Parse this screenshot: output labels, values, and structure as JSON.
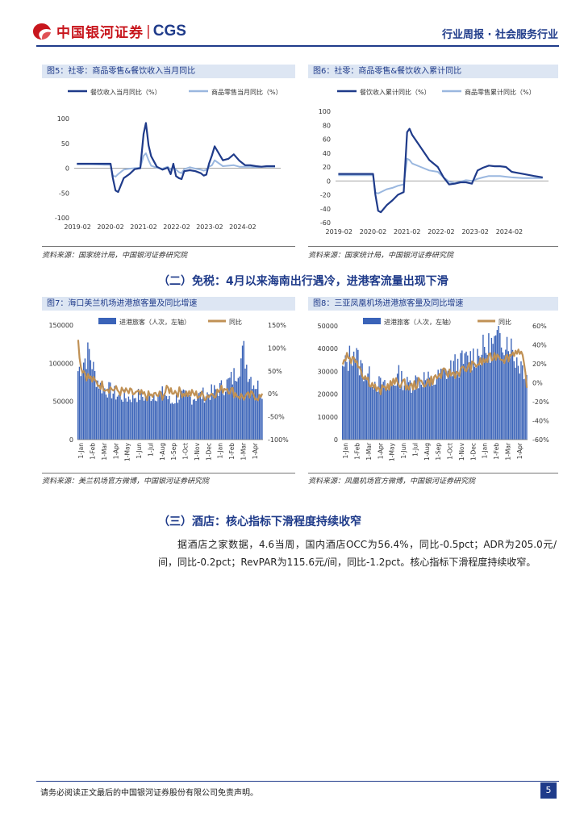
{
  "header": {
    "brand_name": "中国银河证券",
    "brand_sep": "|",
    "brand_abbr": "CGS",
    "right_text": "行业周报 · 社会服务行业"
  },
  "colors": {
    "navy": "#1f3b8a",
    "light_blue": "#9ab7df",
    "bar_blue": "#3a63b8",
    "tan": "#c09155",
    "red": "#c8161d"
  },
  "figures": {
    "fig5": {
      "title": "图5：社零：商品零售&餐饮收入当月同比",
      "source": "资料来源：国家统计局，中国银河证券研究院"
    },
    "fig6": {
      "title": "图6：社零：商品零售&餐饮收入累计同比",
      "source": "资料来源：国家统计局，中国银河证券研究院"
    },
    "fig7": {
      "title": "图7：海口美兰机场进港旅客量及同比增速",
      "source": "资料来源：美兰机场官方微博，中国银河证券研究院"
    },
    "fig8": {
      "title": "图8：三亚凤凰机场进港旅客量及同比增速",
      "source": "资料来源：凤凰机场官方微博，中国银河证券研究院"
    }
  },
  "sections": {
    "s2_title": "（二）免税：4月以来海南出行遇冷，进港客流量出现下滑",
    "s3_title": "（三）酒店：核心指标下滑程度持续收窄",
    "s3_para": "据酒店之家数据，4.6当周，国内酒店OCC为56.4%，同比-0.5pct；ADR为205.0元/间，同比-0.2pct；RevPAR为115.6元/间，同比-1.2pct。核心指标下滑程度持续收窄。"
  },
  "footer": {
    "disclaimer": "请务必阅读正文最后的中国银河证券股份有限公司免责声明。",
    "page": "5"
  },
  "chart_data": [
    {
      "id": "fig5",
      "type": "line",
      "legend": [
        "餐饮收入当月同比（%）",
        "商品零售当月同比（%）"
      ],
      "ylim": [
        -100,
        100
      ],
      "yticks": [
        "100",
        "50",
        "0",
        "-50",
        "-100"
      ],
      "xticks": [
        "2019-02",
        "2020-02",
        "2021-02",
        "2022-02",
        "2023-02",
        "2024-02"
      ],
      "x": [
        2019.08,
        2019.5,
        2019.92,
        2020.1,
        2020.17,
        2020.25,
        2020.33,
        2020.5,
        2020.67,
        2020.83,
        2021.0,
        2021.1,
        2021.17,
        2021.25,
        2021.33,
        2021.5,
        2021.67,
        2021.83,
        2021.92,
        2022.0,
        2022.08,
        2022.17,
        2022.25,
        2022.33,
        2022.5,
        2022.67,
        2022.83,
        2022.92,
        2023.0,
        2023.08,
        2023.17,
        2023.25,
        2023.33,
        2023.5,
        2023.67,
        2023.83,
        2024.0,
        2024.17,
        2024.33,
        2024.5,
        2024.67,
        2024.83,
        2025.0,
        2025.08
      ],
      "series": [
        {
          "name": "餐饮收入当月同比（%）",
          "values": [
            9,
            9,
            9,
            9,
            -20,
            -45,
            -48,
            -20,
            -12,
            -2,
            0,
            69,
            91,
            46,
            24,
            3,
            -3,
            1,
            -12,
            9,
            -16,
            -20,
            -22,
            -6,
            -4,
            -6,
            -10,
            -15,
            -13,
            9,
            26,
            44,
            35,
            16,
            19,
            28,
            15,
            6,
            6,
            4,
            3,
            4,
            4,
            4
          ]
        },
        {
          "name": "商品零售当月同比（%）",
          "values": [
            8,
            8,
            7,
            7,
            -15,
            -17,
            -12,
            -3,
            -1,
            0,
            1,
            25,
            30,
            16,
            5,
            1,
            -1,
            3,
            -3,
            2,
            -3,
            -8,
            -10,
            -2,
            2,
            -1,
            -3,
            -5,
            -3,
            3,
            6,
            16,
            12,
            4,
            5,
            6,
            3,
            3,
            3,
            2,
            3,
            3,
            3,
            3
          ]
        }
      ]
    },
    {
      "id": "fig6",
      "type": "line",
      "legend": [
        "餐饮收入累计同比（%）",
        "商品零售累计同比（%）"
      ],
      "ylim": [
        -60,
        100
      ],
      "yticks": [
        "100",
        "80",
        "60",
        "40",
        "20",
        "0",
        "-20",
        "-40",
        "-60"
      ],
      "xticks": [
        "2019-02",
        "2020-02",
        "2021-02",
        "2022-02",
        "2023-02",
        "2024-02"
      ],
      "x": [
        2019.08,
        2019.5,
        2019.92,
        2020.1,
        2020.17,
        2020.25,
        2020.33,
        2020.5,
        2020.67,
        2020.83,
        2021.0,
        2021.1,
        2021.17,
        2021.25,
        2021.5,
        2021.75,
        2022.0,
        2022.17,
        2022.33,
        2022.5,
        2022.67,
        2022.83,
        2023.0,
        2023.17,
        2023.33,
        2023.5,
        2023.67,
        2023.83,
        2024.0,
        2024.17,
        2024.5,
        2024.83,
        2025.08
      ],
      "series": [
        {
          "name": "餐饮收入累计同比（%）",
          "values": [
            10,
            10,
            10,
            10,
            -20,
            -43,
            -45,
            -35,
            -28,
            -20,
            -16,
            70,
            75,
            66,
            48,
            30,
            20,
            5,
            -5,
            -4,
            -2,
            -2,
            -4,
            15,
            19,
            22,
            21,
            21,
            20,
            13,
            10,
            7,
            5
          ]
        },
        {
          "name": "商品零售累计同比（%）",
          "values": [
            8,
            8,
            8,
            8,
            -17,
            -18,
            -16,
            -12,
            -10,
            -7,
            -5,
            32,
            30,
            25,
            20,
            15,
            13,
            5,
            -1,
            -3,
            -1,
            1,
            0,
            3,
            5,
            7,
            7,
            7,
            6,
            5,
            4,
            4,
            4
          ]
        }
      ]
    },
    {
      "id": "fig7",
      "type": "bar",
      "legend": [
        "进港旅客（人次，左轴）",
        "同比"
      ],
      "yticks_left": [
        "150000",
        "100000",
        "50000",
        "0"
      ],
      "yticks_right": [
        "150%",
        "100%",
        "50%",
        "0%",
        "-50%",
        "-100%"
      ],
      "ylim_left": [
        0,
        150000
      ],
      "ylim_right": [
        -100,
        150
      ],
      "xticks": [
        "1-Jan",
        "1-Feb",
        "1-Mar",
        "1-Apr",
        "1-May",
        "1-Jun",
        "1-Jul",
        "1-Aug",
        "1-Sep",
        "1-Oct",
        "1-Nov",
        "1-Dec",
        "1-Jan",
        "1-Feb",
        "1-Mar",
        "1-Apr"
      ],
      "series": [
        {
          "name": "进港旅客（人次，左轴）",
          "anchors": [
            [
              0,
              90000
            ],
            [
              3,
              100000
            ],
            [
              8,
              115000
            ],
            [
              12,
              85000
            ],
            [
              16,
              70000
            ],
            [
              22,
              65000
            ],
            [
              28,
              58000
            ],
            [
              35,
              55000
            ],
            [
              42,
              58000
            ],
            [
              48,
              56000
            ],
            [
              55,
              60000
            ],
            [
              62,
              60000
            ],
            [
              66,
              48000
            ],
            [
              72,
              57000
            ],
            [
              80,
              55000
            ],
            [
              88,
              58000
            ],
            [
              96,
              62000
            ],
            [
              104,
              70000
            ],
            [
              110,
              80000
            ],
            [
              114,
              95000
            ],
            [
              118,
              115000
            ],
            [
              121,
              90000
            ],
            [
              125,
              75000
            ],
            [
              128,
              70000
            ],
            [
              131,
              65000
            ]
          ]
        },
        {
          "name": "同比",
          "anchors": [
            [
              0,
              115
            ],
            [
              2,
              60
            ],
            [
              6,
              40
            ],
            [
              12,
              25
            ],
            [
              20,
              15
            ],
            [
              30,
              5
            ],
            [
              40,
              0
            ],
            [
              50,
              -5
            ],
            [
              60,
              -3
            ],
            [
              64,
              10
            ],
            [
              70,
              5
            ],
            [
              80,
              0
            ],
            [
              90,
              -5
            ],
            [
              100,
              5
            ],
            [
              105,
              15
            ],
            [
              110,
              5
            ],
            [
              115,
              -5
            ],
            [
              120,
              -8
            ],
            [
              125,
              -2
            ],
            [
              131,
              -10
            ]
          ]
        }
      ]
    },
    {
      "id": "fig8",
      "type": "bar",
      "legend": [
        "进港旅客（人次，左轴）",
        "同比"
      ],
      "yticks_left": [
        "50000",
        "40000",
        "30000",
        "20000",
        "10000",
        "0"
      ],
      "yticks_right": [
        "60%",
        "40%",
        "20%",
        "0%",
        "-20%",
        "-40%",
        "-60%"
      ],
      "ylim_left": [
        0,
        50000
      ],
      "ylim_right": [
        -60,
        60
      ],
      "xticks": [
        "1-Jan",
        "1-Feb",
        "1-Mar",
        "1-Apr",
        "1-May",
        "1-Jun",
        "1-Jul",
        "1-Aug",
        "1-Sep",
        "1-Oct",
        "1-Nov",
        "1-Dec",
        "1-Jan",
        "1-Feb",
        "1-Mar",
        "1-Apr"
      ],
      "series": [
        {
          "name": "进港旅客（人次，左轴）",
          "anchors": [
            [
              0,
              30000
            ],
            [
              4,
              35000
            ],
            [
              8,
              40000
            ],
            [
              12,
              33000
            ],
            [
              18,
              28000
            ],
            [
              24,
              25000
            ],
            [
              32,
              22000
            ],
            [
              40,
              28000
            ],
            [
              46,
              24000
            ],
            [
              52,
              26000
            ],
            [
              58,
              27000
            ],
            [
              64,
              25000
            ],
            [
              70,
              28000
            ],
            [
              78,
              32000
            ],
            [
              86,
              34000
            ],
            [
              94,
              37000
            ],
            [
              102,
              40000
            ],
            [
              108,
              42000
            ],
            [
              114,
              45000
            ],
            [
              118,
              44000
            ],
            [
              122,
              37000
            ],
            [
              127,
              33000
            ],
            [
              131,
              30000
            ]
          ]
        },
        {
          "name": "同比",
          "anchors": [
            [
              0,
              20
            ],
            [
              3,
              30
            ],
            [
              6,
              25
            ],
            [
              10,
              25
            ],
            [
              14,
              10
            ],
            [
              20,
              0
            ],
            [
              26,
              -10
            ],
            [
              30,
              -5
            ],
            [
              36,
              0
            ],
            [
              42,
              0
            ],
            [
              48,
              -5
            ],
            [
              54,
              0
            ],
            [
              60,
              0
            ],
            [
              66,
              5
            ],
            [
              72,
              10
            ],
            [
              80,
              10
            ],
            [
              88,
              15
            ],
            [
              96,
              20
            ],
            [
              104,
              25
            ],
            [
              110,
              30
            ],
            [
              116,
              25
            ],
            [
              120,
              30
            ],
            [
              124,
              35
            ],
            [
              128,
              25
            ],
            [
              131,
              0
            ]
          ]
        }
      ]
    }
  ]
}
